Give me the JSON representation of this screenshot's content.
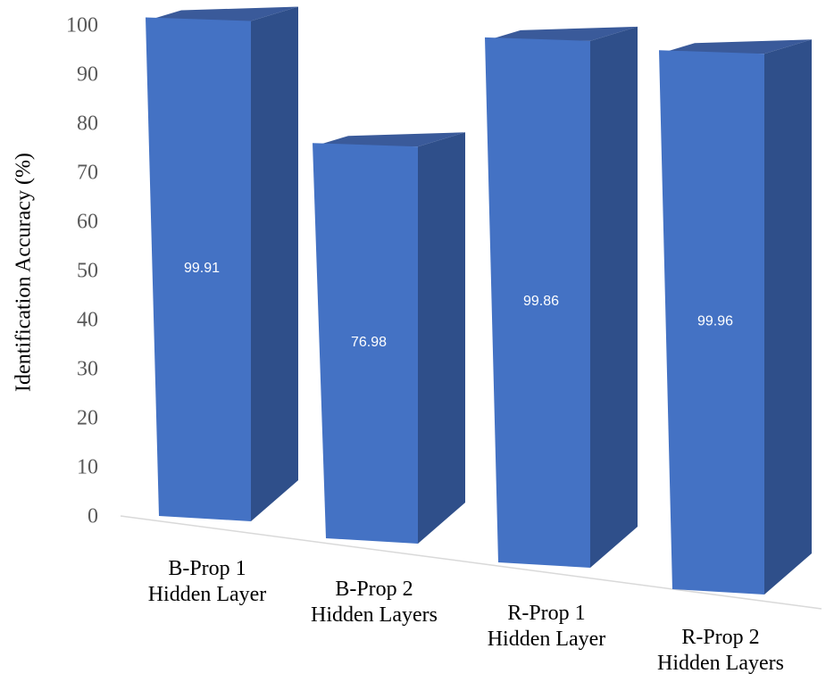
{
  "chart_data": {
    "type": "bar3d",
    "y_label": "Identification Accuracy (%)",
    "categories": [
      "B-Prop 1 Hidden Layer",
      "B-Prop 2 Hidden Layers",
      "R-Prop 1 Hidden Layer",
      "R-Prop 2 Hidden Layers"
    ],
    "values": [
      99.91,
      76.98,
      99.86,
      99.96
    ],
    "color": "#4472c4",
    "ylim": [
      0,
      100
    ],
    "yticks": [
      0,
      10,
      20,
      30,
      40,
      50,
      60,
      70,
      80,
      90,
      100
    ],
    "grid": false
  }
}
